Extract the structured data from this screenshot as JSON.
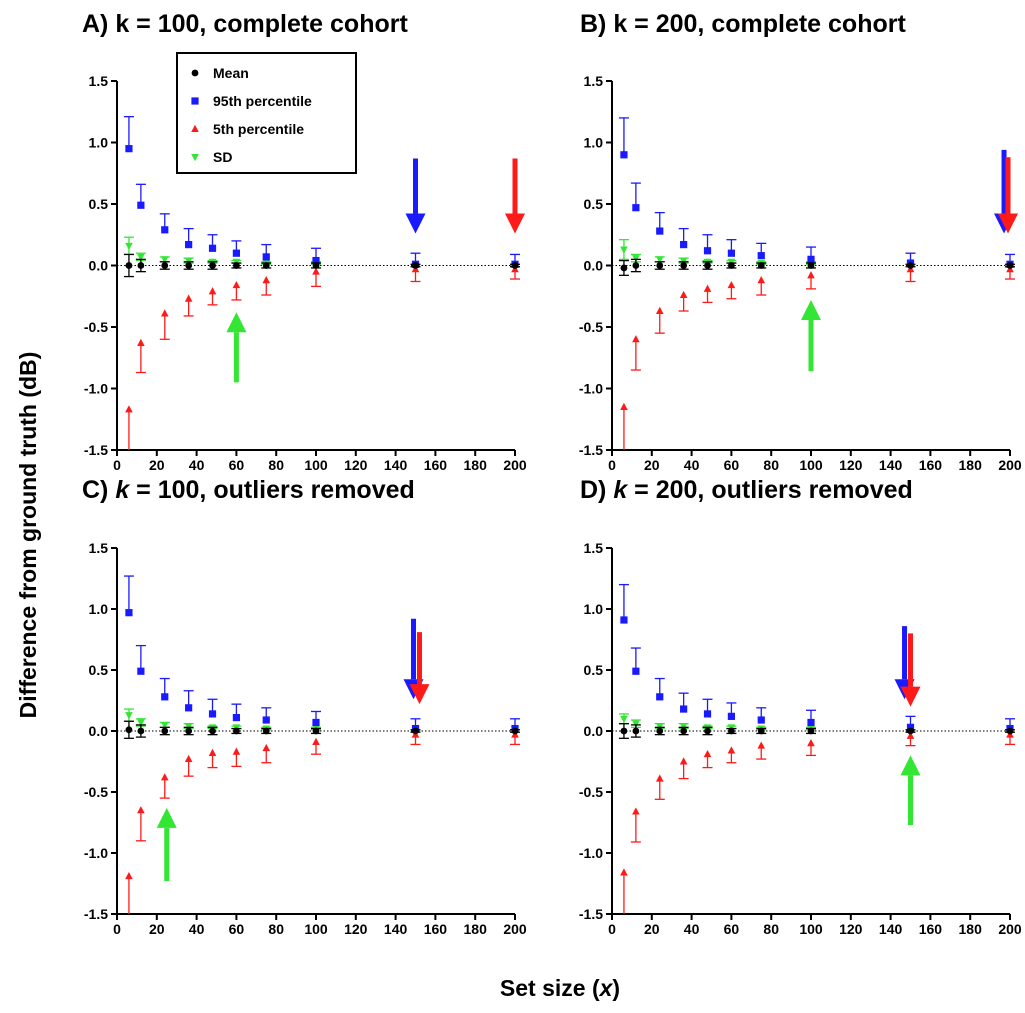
{
  "figure": {
    "ylabel": "Difference from ground truth (dB)",
    "xlabel_main": "Set size (",
    "xlabel_var": "x",
    "xlabel_end": ")"
  },
  "legend": {
    "placement": "top-left of panel A",
    "items": [
      {
        "label": "Mean",
        "color": "#000000",
        "marker": "circle"
      },
      {
        "label": "95th percentile",
        "color": "#1a1aff",
        "marker": "square"
      },
      {
        "label": "5th percentile",
        "color": "#ff1a1a",
        "marker": "triangle-up"
      },
      {
        "label": "SD",
        "color": "#33e633",
        "marker": "triangle-down"
      }
    ]
  },
  "chart_data": [
    {
      "type": "scatter",
      "title_parts": {
        "prefix": "A) ",
        "k": "k",
        "rest": " = 100, complete cohort",
        "k_italic": false
      },
      "xlim": [
        0,
        200
      ],
      "ylim": [
        -1.5,
        1.5
      ],
      "xticks": [
        0,
        20,
        40,
        60,
        80,
        100,
        120,
        140,
        160,
        180,
        200
      ],
      "yticks": [
        -1.5,
        -1.0,
        -0.5,
        0.0,
        0.5,
        1.0,
        1.5
      ],
      "ytick_labels": [
        "-1.5",
        "-1.0",
        "-0.5",
        "0.0",
        "0.5",
        "1.0",
        "1.5"
      ],
      "grid": false,
      "x": [
        6,
        12,
        24,
        36,
        48,
        60,
        75,
        100,
        150,
        200
      ],
      "series": [
        {
          "name": "Mean",
          "color": "#000000",
          "marker": "circle",
          "values": [
            0.0,
            0.0,
            0.0,
            0.0,
            0.0,
            0.0,
            0.0,
            0.0,
            0.0,
            0.0
          ],
          "err": [
            0.09,
            0.05,
            0.03,
            0.03,
            0.03,
            0.02,
            0.02,
            0.02,
            0.01,
            0.01
          ]
        },
        {
          "name": "95th percentile",
          "color": "#1a1aff",
          "marker": "square",
          "values": [
            0.95,
            0.49,
            0.29,
            0.17,
            0.14,
            0.1,
            0.07,
            0.04,
            0.01,
            0.01
          ],
          "err": [
            0.26,
            0.17,
            0.13,
            0.13,
            0.11,
            0.1,
            0.1,
            0.1,
            0.09,
            0.08
          ]
        },
        {
          "name": "5th percentile",
          "color": "#ff1a1a",
          "marker": "triangle-up",
          "values": [
            -1.17,
            -0.63,
            -0.39,
            -0.27,
            -0.21,
            -0.16,
            -0.12,
            -0.05,
            -0.03,
            -0.03
          ],
          "err": [
            0.39,
            0.24,
            0.21,
            0.14,
            0.11,
            0.12,
            0.12,
            0.12,
            0.1,
            0.08
          ]
        },
        {
          "name": "SD",
          "color": "#33e633",
          "marker": "triangle-down",
          "values": [
            0.16,
            0.07,
            0.05,
            0.04,
            0.03,
            0.03,
            0.02,
            0.02,
            0.01,
            0.01
          ],
          "err": [
            0.07,
            0.03,
            0.02,
            0.02,
            0.01,
            0.01,
            0.01,
            0.01,
            0.0,
            0.0
          ]
        }
      ],
      "arrows": [
        {
          "color": "#1a1aff",
          "x": 150,
          "y_from": 0.87,
          "y_to": 0.26
        },
        {
          "color": "#ff1a1a",
          "x": 200,
          "y_from": 0.87,
          "y_to": 0.26
        },
        {
          "color": "#33e633",
          "x": 60,
          "y_from": -0.95,
          "y_to": -0.38
        }
      ]
    },
    {
      "type": "scatter",
      "title_parts": {
        "prefix": "B) ",
        "k": "k",
        "rest": " = 200, complete cohort",
        "k_italic": false
      },
      "xlim": [
        0,
        200
      ],
      "ylim": [
        -1.5,
        1.5
      ],
      "xticks": [
        0,
        20,
        40,
        60,
        80,
        100,
        120,
        140,
        160,
        180,
        200
      ],
      "yticks": [
        -1.5,
        -1.0,
        -0.5,
        0.0,
        0.5,
        1.0,
        1.5
      ],
      "ytick_labels": [
        "-1.5",
        "-1.0",
        "-0.5",
        "0.0",
        "0.5",
        "1.0",
        "1.5"
      ],
      "grid": false,
      "x": [
        6,
        12,
        24,
        36,
        48,
        60,
        75,
        100,
        150,
        200
      ],
      "series": [
        {
          "name": "Mean",
          "color": "#000000",
          "marker": "circle",
          "values": [
            -0.02,
            0.0,
            0.0,
            0.0,
            0.0,
            0.0,
            0.0,
            0.0,
            0.0,
            0.0
          ],
          "err": [
            0.06,
            0.05,
            0.03,
            0.03,
            0.03,
            0.02,
            0.02,
            0.02,
            0.01,
            0.01
          ]
        },
        {
          "name": "95th percentile",
          "color": "#1a1aff",
          "marker": "square",
          "values": [
            0.9,
            0.47,
            0.28,
            0.17,
            0.12,
            0.1,
            0.08,
            0.05,
            0.02,
            0.01
          ],
          "err": [
            0.3,
            0.2,
            0.15,
            0.13,
            0.13,
            0.11,
            0.1,
            0.1,
            0.08,
            0.08
          ]
        },
        {
          "name": "5th percentile",
          "color": "#ff1a1a",
          "marker": "triangle-up",
          "values": [
            -1.15,
            -0.6,
            -0.37,
            -0.24,
            -0.19,
            -0.16,
            -0.12,
            -0.08,
            -0.03,
            -0.03
          ],
          "err": [
            0.41,
            0.25,
            0.18,
            0.13,
            0.11,
            0.11,
            0.12,
            0.11,
            0.1,
            0.08
          ]
        },
        {
          "name": "SD",
          "color": "#33e633",
          "marker": "triangle-down",
          "values": [
            0.13,
            0.06,
            0.05,
            0.04,
            0.03,
            0.03,
            0.02,
            0.02,
            0.01,
            0.01
          ],
          "err": [
            0.08,
            0.03,
            0.02,
            0.02,
            0.01,
            0.01,
            0.01,
            0.01,
            0.0,
            0.0
          ]
        }
      ],
      "arrows": [
        {
          "color": "#1a1aff",
          "x": 197,
          "y_from": 0.94,
          "y_to": 0.26
        },
        {
          "color": "#ff1a1a",
          "x": 199,
          "y_from": 0.88,
          "y_to": 0.26
        },
        {
          "color": "#33e633",
          "x": 100,
          "y_from": -0.86,
          "y_to": -0.28
        }
      ]
    },
    {
      "type": "scatter",
      "title_parts": {
        "prefix": "C) ",
        "k": "k",
        "rest": " = 100, outliers removed",
        "k_italic": true
      },
      "xlim": [
        0,
        200
      ],
      "ylim": [
        -1.5,
        1.5
      ],
      "xticks": [
        0,
        20,
        40,
        60,
        80,
        100,
        120,
        140,
        160,
        180,
        200
      ],
      "yticks": [
        -1.5,
        -1.0,
        -0.5,
        0.0,
        0.5,
        1.0,
        1.5
      ],
      "ytick_labels": [
        "-1.5",
        "-1.0",
        "-0.5",
        "0.0",
        "0.5",
        "1.0",
        "1.5"
      ],
      "grid": false,
      "x": [
        6,
        12,
        24,
        36,
        48,
        60,
        75,
        100,
        150,
        200
      ],
      "series": [
        {
          "name": "Mean",
          "color": "#000000",
          "marker": "circle",
          "values": [
            0.01,
            0.0,
            0.0,
            0.0,
            0.0,
            0.0,
            0.0,
            0.0,
            0.0,
            0.0
          ],
          "err": [
            0.07,
            0.05,
            0.03,
            0.03,
            0.03,
            0.02,
            0.02,
            0.02,
            0.01,
            0.01
          ]
        },
        {
          "name": "95th percentile",
          "color": "#1a1aff",
          "marker": "square",
          "values": [
            0.97,
            0.49,
            0.28,
            0.19,
            0.14,
            0.11,
            0.09,
            0.07,
            0.02,
            0.02
          ],
          "err": [
            0.3,
            0.21,
            0.15,
            0.14,
            0.12,
            0.11,
            0.1,
            0.09,
            0.08,
            0.08
          ]
        },
        {
          "name": "5th percentile",
          "color": "#ff1a1a",
          "marker": "triangle-up",
          "values": [
            -1.19,
            -0.65,
            -0.38,
            -0.23,
            -0.18,
            -0.17,
            -0.14,
            -0.09,
            -0.03,
            -0.03
          ],
          "err": [
            0.39,
            0.25,
            0.17,
            0.14,
            0.12,
            0.12,
            0.12,
            0.1,
            0.08,
            0.08
          ]
        },
        {
          "name": "SD",
          "color": "#33e633",
          "marker": "triangle-down",
          "values": [
            0.13,
            0.07,
            0.05,
            0.04,
            0.03,
            0.03,
            0.02,
            0.02,
            0.01,
            0.01
          ],
          "err": [
            0.05,
            0.03,
            0.02,
            0.02,
            0.01,
            0.01,
            0.01,
            0.01,
            0.0,
            0.0
          ]
        }
      ],
      "arrows": [
        {
          "color": "#1a1aff",
          "x": 149,
          "y_from": 0.92,
          "y_to": 0.26
        },
        {
          "color": "#ff1a1a",
          "x": 152,
          "y_from": 0.81,
          "y_to": 0.22
        },
        {
          "color": "#33e633",
          "x": 25,
          "y_from": -1.23,
          "y_to": -0.63
        }
      ]
    },
    {
      "type": "scatter",
      "title_parts": {
        "prefix": "D) ",
        "k": "k",
        "rest": " = 200, outliers removed",
        "k_italic": true
      },
      "xlim": [
        0,
        200
      ],
      "ylim": [
        -1.5,
        1.5
      ],
      "xticks": [
        0,
        20,
        40,
        60,
        80,
        100,
        120,
        140,
        160,
        180,
        200
      ],
      "yticks": [
        -1.5,
        -1.0,
        -0.5,
        0.0,
        0.5,
        1.0,
        1.5
      ],
      "ytick_labels": [
        "-1.5",
        "-1.0",
        "-0.5",
        "0.0",
        "0.5",
        "1.0",
        "1.5"
      ],
      "grid": false,
      "x": [
        6,
        12,
        24,
        36,
        48,
        60,
        75,
        100,
        150,
        200
      ],
      "series": [
        {
          "name": "Mean",
          "color": "#000000",
          "marker": "circle",
          "values": [
            0.0,
            0.0,
            0.0,
            0.0,
            0.0,
            0.0,
            0.0,
            0.0,
            0.0,
            0.0
          ],
          "err": [
            0.06,
            0.05,
            0.03,
            0.03,
            0.03,
            0.02,
            0.02,
            0.02,
            0.01,
            0.01
          ]
        },
        {
          "name": "95th percentile",
          "color": "#1a1aff",
          "marker": "square",
          "values": [
            0.91,
            0.49,
            0.28,
            0.18,
            0.14,
            0.12,
            0.09,
            0.07,
            0.03,
            0.02
          ],
          "err": [
            0.29,
            0.19,
            0.15,
            0.13,
            0.12,
            0.11,
            0.1,
            0.1,
            0.09,
            0.08
          ]
        },
        {
          "name": "5th percentile",
          "color": "#ff1a1a",
          "marker": "triangle-up",
          "values": [
            -1.16,
            -0.66,
            -0.39,
            -0.25,
            -0.19,
            -0.16,
            -0.12,
            -0.1,
            -0.04,
            -0.03
          ],
          "err": [
            0.38,
            0.25,
            0.17,
            0.14,
            0.11,
            0.1,
            0.11,
            0.1,
            0.08,
            0.08
          ]
        },
        {
          "name": "SD",
          "color": "#33e633",
          "marker": "triangle-down",
          "values": [
            0.1,
            0.06,
            0.04,
            0.04,
            0.03,
            0.03,
            0.02,
            0.02,
            0.01,
            0.01
          ],
          "err": [
            0.04,
            0.03,
            0.02,
            0.02,
            0.01,
            0.01,
            0.01,
            0.01,
            0.0,
            0.0
          ]
        }
      ],
      "arrows": [
        {
          "color": "#1a1aff",
          "x": 147,
          "y_from": 0.86,
          "y_to": 0.26
        },
        {
          "color": "#ff1a1a",
          "x": 150,
          "y_from": 0.8,
          "y_to": 0.2
        },
        {
          "color": "#33e633",
          "x": 150,
          "y_from": -0.77,
          "y_to": -0.2
        }
      ]
    }
  ]
}
